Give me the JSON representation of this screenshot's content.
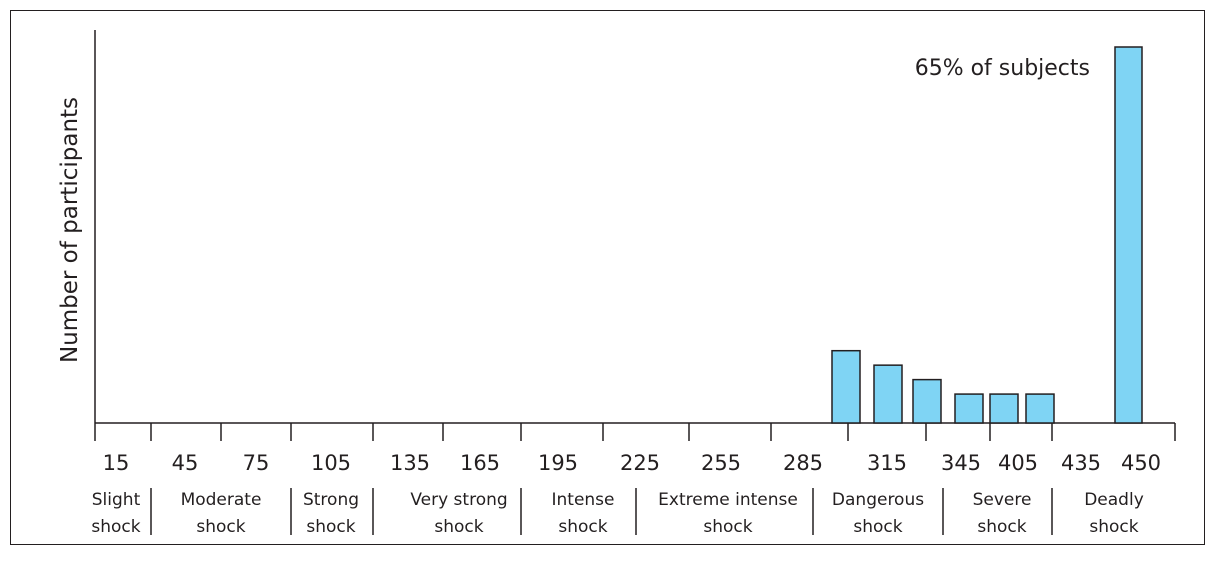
{
  "chart_data": {
    "type": "bar",
    "title": "",
    "xlabel": "",
    "ylabel": "Number of participants",
    "x_ticks": [
      "15",
      "45",
      "75",
      "105",
      "135",
      "165",
      "195",
      "225",
      "255",
      "285",
      "315",
      "345",
      "405",
      "435",
      "450"
    ],
    "bars": [
      {
        "x": "300",
        "value": 5
      },
      {
        "x": "315",
        "value": 4
      },
      {
        "x": "330",
        "value": 3
      },
      {
        "x": "345",
        "value": 2
      },
      {
        "x": "360",
        "value": 2
      },
      {
        "x": "375",
        "value": 2
      },
      {
        "x": "450",
        "value": 26
      }
    ],
    "ylim": [
      0,
      26
    ],
    "bar_color": "#7fd4f4",
    "grid": false,
    "categories": [
      {
        "line1": "Slight",
        "line2": "shock"
      },
      {
        "line1": "Moderate",
        "line2": "shock"
      },
      {
        "line1": "Strong",
        "line2": "shock"
      },
      {
        "line1": "Very strong",
        "line2": "shock"
      },
      {
        "line1": "Intense",
        "line2": "shock"
      },
      {
        "line1": "Extreme intense",
        "line2": "shock"
      },
      {
        "line1": "Dangerous",
        "line2": "shock"
      },
      {
        "line1": "Severe",
        "line2": "shock"
      },
      {
        "line1": "Deadly",
        "line2": "shock"
      }
    ],
    "annotation": "65% of subjects"
  }
}
